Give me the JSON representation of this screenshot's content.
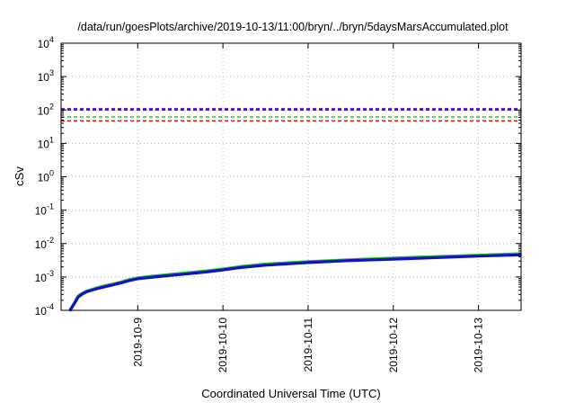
{
  "chart_data": {
    "type": "line",
    "title": "/data/run/goesPlots/archive/2019-10-13/11:00/bryn/../bryn/5daysMarsAccumulated.plot",
    "xlabel": "Coordinated Universal Time (UTC)",
    "ylabel": "cSv",
    "yscale": "log",
    "ylim_exponent": [
      -4,
      4
    ],
    "y_ticks": [
      {
        "base": "10",
        "exp": "-4"
      },
      {
        "base": "10",
        "exp": "-3"
      },
      {
        "base": "10",
        "exp": "-2"
      },
      {
        "base": "10",
        "exp": "-1"
      },
      {
        "base": "10",
        "exp": "0"
      },
      {
        "base": "10",
        "exp": "1"
      },
      {
        "base": "10",
        "exp": "2"
      },
      {
        "base": "10",
        "exp": "3"
      },
      {
        "base": "10",
        "exp": "4"
      }
    ],
    "x_range_days": [
      8.1,
      13.5
    ],
    "x_ticks": [
      {
        "label": "2019-10-9",
        "day": 9
      },
      {
        "label": "2019-10-10",
        "day": 10
      },
      {
        "label": "2019-10-11",
        "day": 11
      },
      {
        "label": "2019-10-12",
        "day": 12
      },
      {
        "label": "2019-10-13",
        "day": 13
      }
    ],
    "grid": true,
    "threshold_lines": [
      {
        "value": 110,
        "color": "#7b1fd6",
        "style": "dashed"
      },
      {
        "value": 100,
        "color": "#1a1acc",
        "style": "dashed"
      },
      {
        "value": 62,
        "color": "#22cc22",
        "style": "dashed"
      },
      {
        "value": 47,
        "color": "#dd1111",
        "style": "dashed"
      }
    ],
    "series": [
      {
        "color": "#22bb22",
        "x": [
          8.2,
          8.25,
          8.3,
          8.35,
          8.4,
          8.5,
          8.6,
          8.7,
          8.8,
          8.9,
          9.0,
          9.2,
          9.5,
          9.8,
          10.0,
          10.2,
          10.5,
          11.0,
          11.5,
          12.0,
          12.5,
          13.0,
          13.5
        ],
        "y": [
          0.0001,
          0.00016,
          0.00027,
          0.00033,
          0.00038,
          0.00046,
          0.00054,
          0.00061,
          0.00071,
          0.00084,
          0.00095,
          0.00108,
          0.00128,
          0.00152,
          0.00175,
          0.00205,
          0.00245,
          0.0029,
          0.0033,
          0.0037,
          0.0041,
          0.0045,
          0.005
        ]
      },
      {
        "color": "#1111cc",
        "x": [
          8.2,
          8.25,
          8.3,
          8.35,
          8.4,
          8.5,
          8.6,
          8.7,
          8.8,
          8.9,
          9.0,
          9.2,
          9.5,
          9.8,
          10.0,
          10.2,
          10.5,
          11.0,
          11.5,
          12.0,
          12.5,
          13.0,
          13.5
        ],
        "y": [
          9.5e-05,
          0.00015,
          0.00025,
          0.00031,
          0.00036,
          0.00043,
          0.0005,
          0.00057,
          0.00066,
          0.00078,
          0.00088,
          0.001,
          0.00118,
          0.0014,
          0.00162,
          0.0019,
          0.00225,
          0.0027,
          0.0031,
          0.0034,
          0.0038,
          0.0042,
          0.0046
        ]
      }
    ]
  },
  "colors": {
    "grid": "#bbbbbb",
    "axis": "#000000"
  }
}
